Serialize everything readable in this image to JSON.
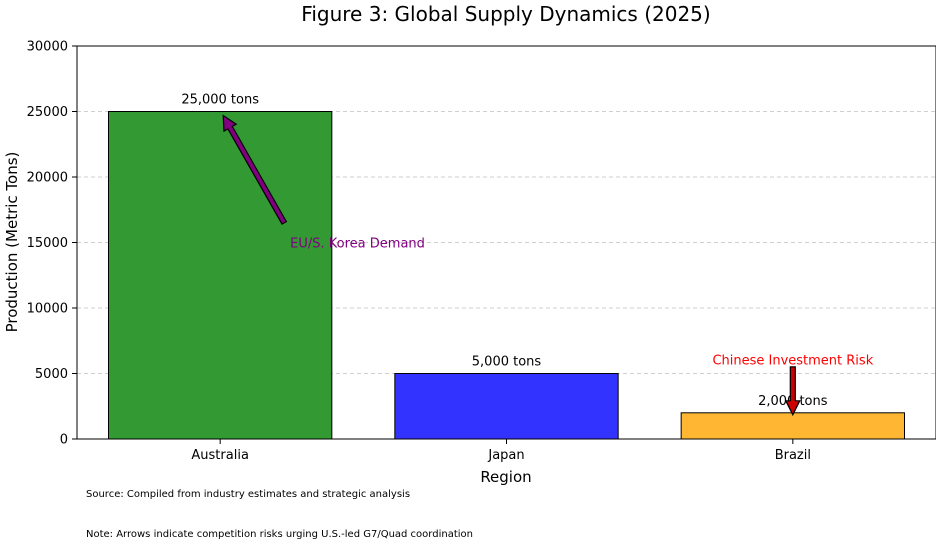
{
  "chart_data": {
    "type": "bar",
    "title": "Figure 3: Global Supply Dynamics (2025)",
    "xlabel": "Region",
    "ylabel": "Production (Metric Tons)",
    "categories": [
      "Australia",
      "Japan",
      "Brazil"
    ],
    "values": [
      25000,
      5000,
      2000
    ],
    "data_labels": [
      "25,000 tons",
      "5,000 tons",
      "2,000 tons"
    ],
    "colors": [
      "#339933",
      "#3333ff",
      "#ffb733"
    ],
    "ylim": [
      0,
      30000
    ],
    "yticks": [
      0,
      5000,
      10000,
      15000,
      20000,
      25000,
      30000
    ],
    "grid": "y-dashed",
    "annotations": [
      {
        "text": "EU/S. Korea Demand",
        "color": "#800080",
        "arrow_color": "#800080",
        "points_to": {
          "x": "Australia",
          "y": 25000
        }
      },
      {
        "text": "Chinese Investment Risk",
        "color": "#ff0000",
        "arrow_color": "#cc0000",
        "points_to": {
          "x": "Brazil",
          "y": 2000
        }
      }
    ]
  },
  "notes": {
    "source": "Source: Compiled from industry estimates and strategic analysis",
    "note": "Note: Arrows indicate competition risks urging U.S.-led G7/Quad coordination"
  }
}
